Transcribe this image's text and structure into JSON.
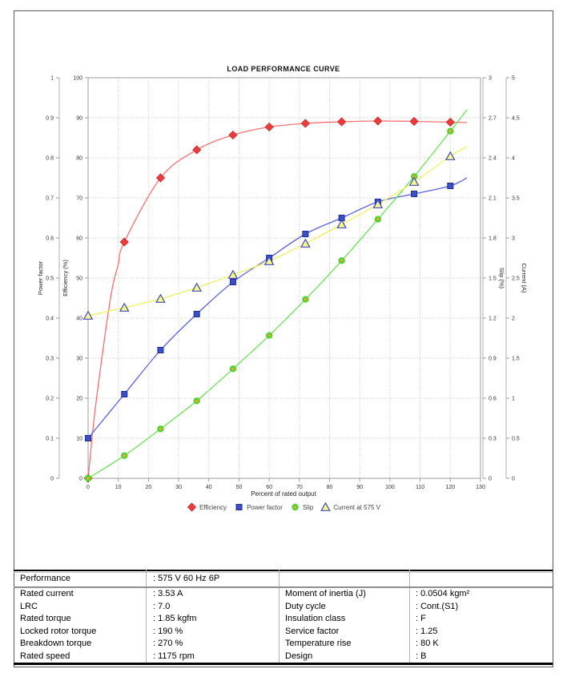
{
  "chart": {
    "title": "LOAD PERFORMANCE CURVE",
    "x_axis": {
      "label": "Percent of rated output",
      "min": 0,
      "max": 130,
      "step": 10
    },
    "y_axes": [
      {
        "id": "power_factor",
        "label": "Power factor",
        "min": 0,
        "max": 1,
        "step": 0.1,
        "position": "left-outer"
      },
      {
        "id": "efficiency",
        "label": "Efficiency (%)",
        "min": 0,
        "max": 100,
        "step": 10,
        "position": "left-inner"
      },
      {
        "id": "slip",
        "label": "Slip (%)",
        "min": 0,
        "max": 3,
        "step": 0.3,
        "position": "right-inner"
      },
      {
        "id": "current",
        "label": "Current (A)",
        "min": 0,
        "max": 5,
        "step": 0.5,
        "position": "right-outer"
      }
    ]
  },
  "chart_data": {
    "type": "line",
    "title": "LOAD PERFORMANCE CURVE",
    "xlabel": "Percent of rated output",
    "xlim": [
      0,
      130
    ],
    "grid": true,
    "legend_position": "bottom",
    "x": [
      0,
      12,
      24,
      36,
      48,
      60,
      72,
      84,
      96,
      108,
      120
    ],
    "series": [
      {
        "name": "Efficiency",
        "axis": "efficiency",
        "axis_range": [
          0,
          100
        ],
        "marker": "diamond",
        "marker_fill": "#ee3b3b",
        "marker_stroke": "#c42424",
        "line_color": "#f47070",
        "values": [
          0,
          59,
          75,
          82,
          85.7,
          87.7,
          88.6,
          89,
          89.2,
          89.1,
          88.9
        ],
        "curve_extra": [
          [
            2,
            15
          ],
          [
            4,
            27
          ],
          [
            6,
            38
          ],
          [
            8,
            47.5
          ],
          [
            10,
            53.5
          ],
          [
            125.5,
            88.8
          ]
        ]
      },
      {
        "name": "Power factor",
        "axis": "power_factor",
        "axis_range": [
          0,
          1
        ],
        "marker": "square",
        "marker_fill": "#3a50c8",
        "marker_stroke": "#1e2e96",
        "line_color": "#5b62e0",
        "values": [
          0.1,
          0.21,
          0.32,
          0.41,
          0.49,
          0.55,
          0.61,
          0.65,
          0.69,
          0.71,
          0.73
        ],
        "curve_extra": [
          [
            125.5,
            0.75
          ]
        ]
      },
      {
        "name": "Slip",
        "axis": "slip",
        "axis_range": [
          0,
          3
        ],
        "marker": "circle",
        "marker_fill": "#f5a62e",
        "marker_stroke": "#4fd332",
        "line_color": "#67e34f",
        "values": [
          0,
          0.17,
          0.37,
          0.58,
          0.82,
          1.07,
          1.34,
          1.63,
          1.94,
          2.26,
          2.6
        ],
        "curve_extra": [
          [
            125.5,
            2.76
          ]
        ]
      },
      {
        "name": "Current at 575 V",
        "axis": "current",
        "axis_range": [
          0,
          5
        ],
        "marker": "triangle",
        "marker_fill": "#fcfc8a",
        "marker_stroke": "#3b49c4",
        "line_color": "#f0f05a",
        "values": [
          2.03,
          2.13,
          2.24,
          2.38,
          2.54,
          2.71,
          2.93,
          3.17,
          3.42,
          3.7,
          4.02
        ],
        "curve_extra": [
          [
            125.5,
            4.14
          ]
        ]
      }
    ]
  },
  "table": {
    "header": {
      "label": "Performance",
      "value": ": 575 V 60 Hz 6P"
    },
    "left_rows": [
      {
        "label": "Rated current",
        "value": ": 3.53 A"
      },
      {
        "label": "LRC",
        "value": ": 7.0"
      },
      {
        "label": "Rated torque",
        "value": ": 1.85 kgfm"
      },
      {
        "label": "Locked rotor torque",
        "value": ": 190 %"
      },
      {
        "label": "Breakdown torque",
        "value": ": 270 %"
      },
      {
        "label": "Rated speed",
        "value": ": 1175 rpm"
      }
    ],
    "right_rows": [
      {
        "label": "Moment of inertia (J)",
        "value": ": 0.0504 kgm²"
      },
      {
        "label": "Duty cycle",
        "value": ": Cont.(S1)"
      },
      {
        "label": "Insulation class",
        "value": ": F"
      },
      {
        "label": "Service factor",
        "value": ": 1.25"
      },
      {
        "label": "Temperature rise",
        "value": ": 80 K"
      },
      {
        "label": "Design",
        "value": ": B"
      }
    ]
  }
}
